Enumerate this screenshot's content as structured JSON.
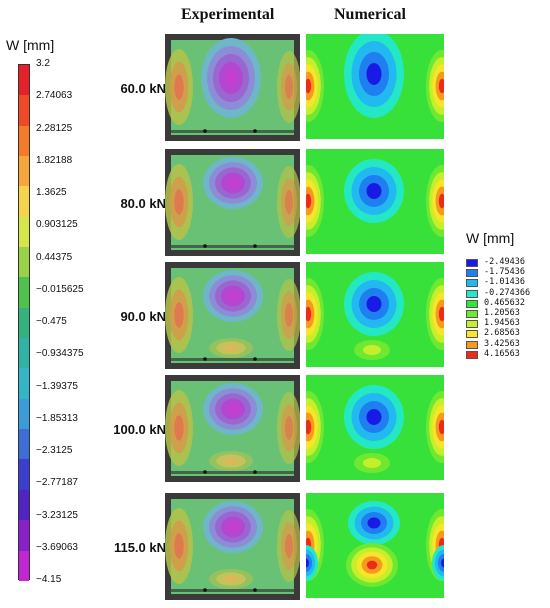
{
  "headers": {
    "experimental": "Experimental",
    "numerical": "Numerical"
  },
  "left_colorbar": {
    "title": "W [mm]",
    "ticks": [
      "3.2",
      "2.74063",
      "2.28125",
      "1.82188",
      "1.3625",
      "0.903125",
      "0.44375",
      "−0.015625",
      "−0.475",
      "−0.934375",
      "−1.39375",
      "−1.85313",
      "−2.3125",
      "−2.77187",
      "−3.23125",
      "−3.69063",
      "−4.15"
    ],
    "colors": [
      "#e5202a",
      "#ef4a25",
      "#f47b2a",
      "#f6a63a",
      "#f2d54a",
      "#d5e64a",
      "#9ad24a",
      "#4fc24d",
      "#33b27d",
      "#30b3a5",
      "#35b6c8",
      "#3a9cd9",
      "#3d6ed8",
      "#3b3fd0",
      "#5324c4",
      "#8a20c8",
      "#c226d2"
    ]
  },
  "right_legend": {
    "title": "W [mm]",
    "items": [
      {
        "label": "-2.49436",
        "color": "#1a1ae6"
      },
      {
        "label": "-1.75436",
        "color": "#1f7ef0"
      },
      {
        "label": "-1.01436",
        "color": "#22b8f0"
      },
      {
        "label": "-0.274366",
        "color": "#22e8c8"
      },
      {
        "label": "0.465632",
        "color": "#2ee83a"
      },
      {
        "label": "1.20563",
        "color": "#6ee830"
      },
      {
        "label": "1.94563",
        "color": "#c6ee2a"
      },
      {
        "label": "2.68563",
        "color": "#f5e62a"
      },
      {
        "label": "3.42563",
        "color": "#f59a1e"
      },
      {
        "label": "4.16563",
        "color": "#ee2a1a"
      }
    ]
  },
  "loads": [
    "60.0 kN",
    "80.0 kN",
    "90.0 kN",
    "100.0 kN",
    "115.0 kN"
  ]
}
